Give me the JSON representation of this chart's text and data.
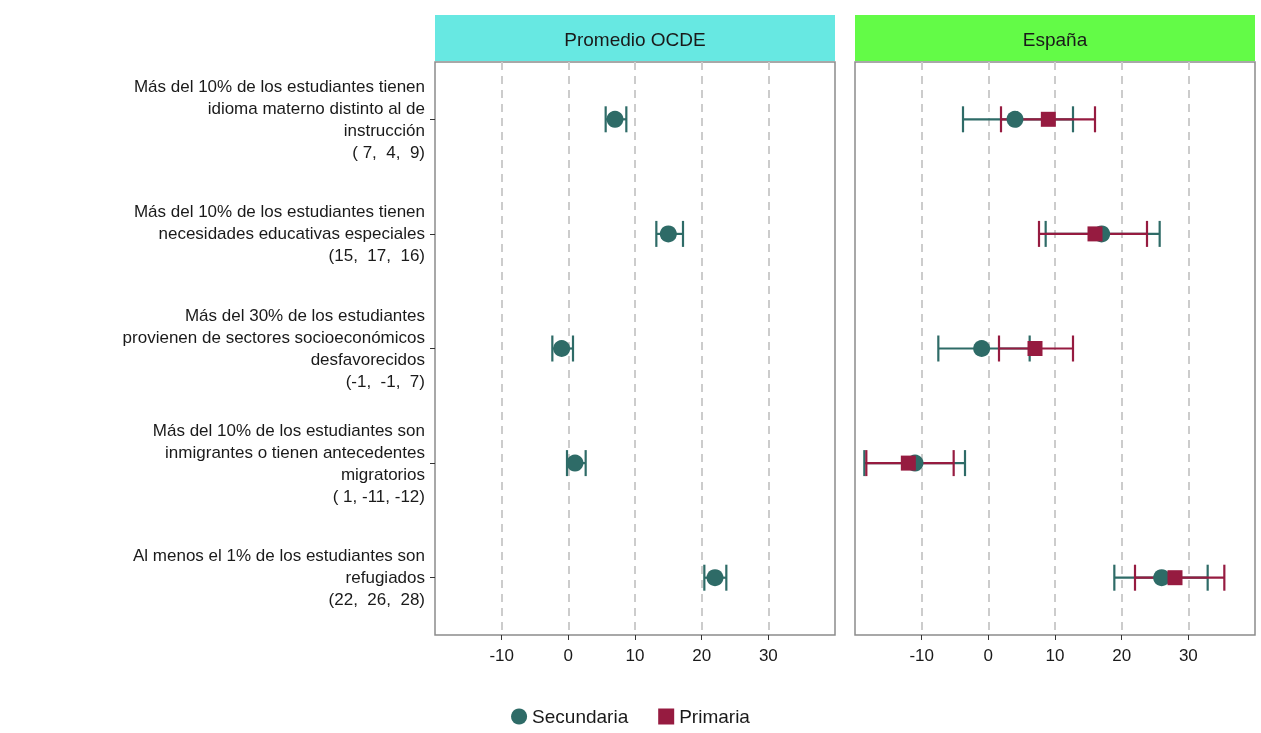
{
  "chart_data": [
    {
      "type": "scatter",
      "title": "Promedio OCDE",
      "orientation": "horizontal",
      "categories": [
        "Más del 10% de los estudiantes tienen\nidioma materno distinto al de\ninstrucción\n( 7,  4,  9)",
        "Más del 10% de los estudiantes tienen\nnecesidades educativas especiales\n(15,  17,  16)",
        "Más del 30% de los estudiantes\nprovienen de sectores socioeconómicos\ndesfavorecidos\n(-1,  -1,  7)",
        "Más del 10% de los estudiantes son\ninmigrantes o tienen antecedentes\nmigratorios\n( 1, -11, -12)",
        "Al menos el 1% de los estudiantes son\nrefugiados\n(22,  26,  28)"
      ],
      "series": [
        {
          "color": "#2e6b67",
          "marker": "circle",
          "values": [
            7,
            15,
            -1,
            1,
            22
          ],
          "errors": [
            [
              5.6,
              8.7
            ],
            [
              13.2,
              17.2
            ],
            [
              -2.4,
              0.7
            ],
            [
              -0.2,
              2.6
            ],
            [
              20.4,
              23.7
            ]
          ]
        }
      ],
      "xlim": [
        -20,
        40
      ],
      "xticks": [
        -10,
        0,
        10,
        20,
        30
      ],
      "grid": "x",
      "legend": false
    },
    {
      "type": "scatter",
      "title": "España",
      "orientation": "horizontal",
      "categories": [
        null,
        null,
        null,
        null,
        null
      ],
      "series": [
        {
          "name": "Secundaria",
          "color": "#2e6b67",
          "marker": "circle",
          "values": [
            4,
            17,
            -1,
            -11,
            26
          ],
          "errors": [
            [
              -3.8,
              12.7
            ],
            [
              8.6,
              25.7
            ],
            [
              -7.5,
              6.2
            ],
            [
              -18.6,
              -3.5
            ],
            [
              18.9,
              32.9
            ]
          ]
        },
        {
          "name": "Primaria",
          "color": "#961b40",
          "marker": "square",
          "values": [
            9,
            16,
            7,
            -12,
            28
          ],
          "errors": [
            [
              1.9,
              16
            ],
            [
              7.6,
              23.8
            ],
            [
              1.6,
              12.7
            ],
            [
              -18.3,
              -5.2
            ],
            [
              22,
              35.4
            ]
          ]
        }
      ],
      "xlim": [
        -20,
        40
      ],
      "xticks": [
        -10,
        0,
        10,
        20,
        30
      ],
      "grid": "x",
      "legend": "bottom",
      "tick_labels": "x"
    }
  ]
}
